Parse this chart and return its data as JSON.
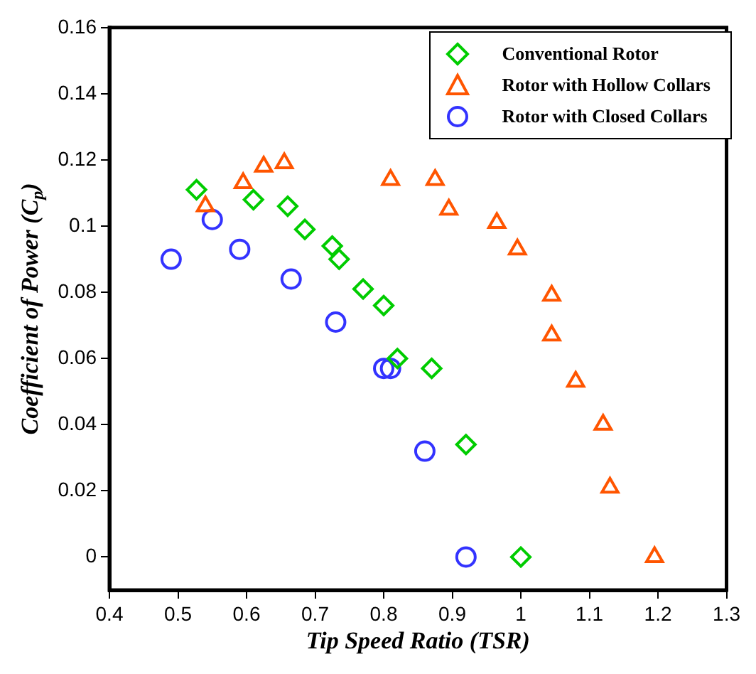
{
  "chart_data": {
    "type": "scatter",
    "xlabel": "Tip Speed Ratio (TSR)",
    "ylabel": "Coefficient of Power (C$_{p}$)",
    "xlim": [
      0.4,
      1.3
    ],
    "xticks": [
      0.4,
      0.5,
      0.6,
      0.7,
      0.8,
      0.9,
      1,
      1.1,
      1.2,
      1.3
    ],
    "ylim": [
      -0.01,
      0.16
    ],
    "yticks": [
      0,
      0.02,
      0.04,
      0.06,
      0.08,
      0.1,
      0.12,
      0.14,
      0.16
    ],
    "grid": false,
    "legend": "top right",
    "series": [
      {
        "name": "Conventional Rotor",
        "color": "#00cc00",
        "marker": "diamond",
        "x": [
          0.527,
          0.61,
          0.66,
          0.685,
          0.725,
          0.735,
          0.77,
          0.8,
          0.82,
          0.87,
          0.92,
          1.0
        ],
        "values": [
          0.111,
          0.108,
          0.106,
          0.099,
          0.094,
          0.09,
          0.081,
          0.076,
          0.06,
          0.057,
          0.034,
          0.0
        ]
      },
      {
        "name": "Rotor with Hollow Collars",
        "color": "#ff5500",
        "marker": "triangle",
        "x": [
          0.54,
          0.595,
          0.625,
          0.655,
          0.81,
          0.875,
          0.895,
          0.965,
          0.995,
          1.045,
          1.045,
          1.08,
          1.12,
          1.13,
          1.195
        ],
        "values": [
          0.106,
          0.113,
          0.118,
          0.119,
          0.114,
          0.114,
          0.105,
          0.101,
          0.093,
          0.079,
          0.067,
          0.053,
          0.04,
          0.021,
          0.0
        ]
      },
      {
        "name": "Rotor with Closed Collars",
        "color": "#3333ff",
        "marker": "circle",
        "x": [
          0.49,
          0.55,
          0.59,
          0.665,
          0.73,
          0.8,
          0.81,
          0.86,
          0.92
        ],
        "values": [
          0.09,
          0.102,
          0.093,
          0.084,
          0.071,
          0.057,
          0.057,
          0.032,
          0.0
        ]
      }
    ]
  }
}
